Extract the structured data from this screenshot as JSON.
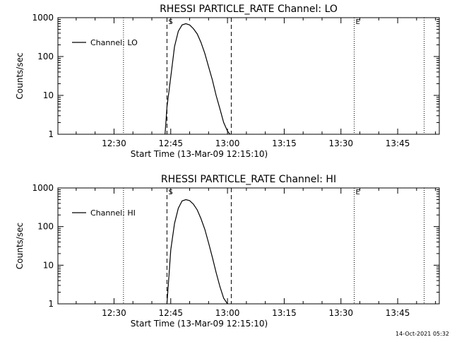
{
  "footer": {
    "timestamp": "14-Oct-2021 05:32"
  },
  "chart_data": [
    {
      "type": "line",
      "title": "RHESSI PARTICLE_RATE Channel: LO",
      "xlabel": "Start Time (13-Mar-09 12:15:10)",
      "ylabel": "Counts/sec",
      "x_unit": "minutes",
      "xlim": [
        "12:15:10",
        "13:56:00"
      ],
      "x_ticks": [
        "12:30",
        "12:45",
        "13:00",
        "13:15",
        "13:30",
        "13:45"
      ],
      "y_scale": "log",
      "ylim": [
        1,
        1000
      ],
      "y_ticks": [
        "1",
        "10",
        "100",
        "1000"
      ],
      "legend": {
        "position": "top-left",
        "entries": [
          "Channel: LO"
        ]
      },
      "markers": [
        {
          "label": "S",
          "time": "12:44:00",
          "style": "dashed"
        },
        {
          "label": "",
          "time": "13:01:00",
          "style": "dashed"
        },
        {
          "label": "E",
          "time": "13:33:30",
          "style": "dotted"
        },
        {
          "label": "",
          "time": "12:32:30",
          "style": "dotted"
        },
        {
          "label": "",
          "time": "13:52:00",
          "style": "dotted"
        }
      ],
      "series": [
        {
          "name": "Channel: LO",
          "color": "#000000",
          "x": [
            "12:43:30",
            "12:44:00",
            "12:45:00",
            "12:46:00",
            "12:47:00",
            "12:48:00",
            "12:49:00",
            "12:50:00",
            "12:51:00",
            "12:52:00",
            "12:53:00",
            "12:54:00",
            "12:55:00",
            "12:56:00",
            "12:57:00",
            "12:58:00",
            "12:59:00",
            "13:00:00",
            "13:00:40"
          ],
          "values": [
            1,
            5,
            30,
            180,
            450,
            650,
            700,
            650,
            520,
            380,
            230,
            120,
            55,
            25,
            10,
            4.5,
            2.0,
            1.2,
            1
          ]
        }
      ]
    },
    {
      "type": "line",
      "title": "RHESSI PARTICLE_RATE Channel: HI",
      "xlabel": "Start Time (13-Mar-09 12:15:10)",
      "ylabel": "Counts/sec",
      "x_unit": "minutes",
      "xlim": [
        "12:15:10",
        "13:56:00"
      ],
      "x_ticks": [
        "12:30",
        "12:45",
        "13:00",
        "13:15",
        "13:30",
        "13:45"
      ],
      "y_scale": "log",
      "ylim": [
        1,
        1000
      ],
      "y_ticks": [
        "1",
        "10",
        "100",
        "1000"
      ],
      "legend": {
        "position": "top-left",
        "entries": [
          "Channel: HI"
        ]
      },
      "markers": [
        {
          "label": "S",
          "time": "12:44:00",
          "style": "dashed"
        },
        {
          "label": "",
          "time": "13:01:00",
          "style": "dashed"
        },
        {
          "label": "E",
          "time": "13:33:30",
          "style": "dotted"
        },
        {
          "label": "",
          "time": "12:32:30",
          "style": "dotted"
        },
        {
          "label": "",
          "time": "13:52:00",
          "style": "dotted"
        }
      ],
      "series": [
        {
          "name": "Channel: HI",
          "color": "#000000",
          "x": [
            "12:44:00",
            "12:45:00",
            "12:46:00",
            "12:47:00",
            "12:48:00",
            "12:49:00",
            "12:50:00",
            "12:51:00",
            "12:52:00",
            "12:53:00",
            "12:54:00",
            "12:55:00",
            "12:56:00",
            "12:57:00",
            "12:58:00",
            "12:59:00",
            "13:00:00"
          ],
          "values": [
            1,
            25,
            120,
            300,
            460,
            500,
            470,
            380,
            270,
            160,
            85,
            38,
            16,
            6.5,
            2.8,
            1.4,
            1
          ]
        }
      ]
    }
  ]
}
